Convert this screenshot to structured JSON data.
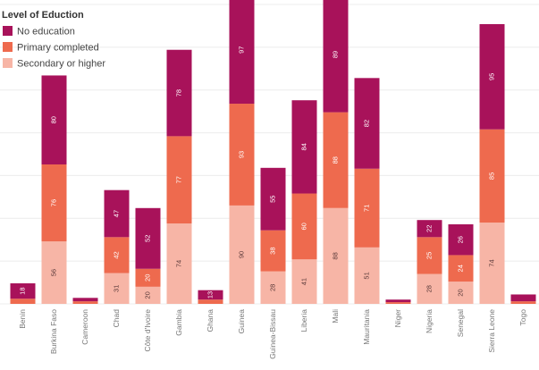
{
  "chart_data": {
    "type": "bar",
    "stacked": true,
    "legend_title": "Level of Eduction",
    "legend_position": "top-left",
    "grid": true,
    "ylim": [
      0,
      350
    ],
    "categories": [
      "Benin",
      "Burkina Faso",
      "Cameroon",
      "Chad",
      "Côte d'Ivoire",
      "Gambia",
      "Ghana",
      "Guinea",
      "Guinea-Bissau",
      "Liberia",
      "Mali",
      "Mauritania",
      "Niger",
      "Nigeria",
      "Senegal",
      "Sierra Leone",
      "Togo"
    ],
    "series": [
      {
        "name": "Secondary or higher",
        "color": "#f7b5a6",
        "values": [
          0,
          73,
          0,
          36,
          20,
          94,
          0,
          115,
          38,
          52,
          112,
          66,
          0,
          35,
          26,
          95,
          0
        ]
      },
      {
        "name": "Primary completed",
        "color": "#ee6a4e",
        "values": [
          6,
          90,
          3,
          42,
          21,
          102,
          5,
          119,
          48,
          77,
          112,
          92,
          2,
          43,
          31,
          109,
          3
        ]
      },
      {
        "name": "No education",
        "color": "#a8125a",
        "values": [
          18,
          104,
          4,
          55,
          71,
          101,
          11,
          126,
          73,
          109,
          135,
          106,
          3,
          20,
          36,
          123,
          8
        ]
      }
    ],
    "data_labels": [
      [
        "",
        "",
        "18"
      ],
      [
        "56",
        "76",
        "80"
      ],
      [
        "",
        "",
        ""
      ],
      [
        "31",
        "42",
        "47"
      ],
      [
        "20",
        "20",
        "52"
      ],
      [
        "74",
        "77",
        "78"
      ],
      [
        "",
        "",
        "13"
      ],
      [
        "90",
        "93",
        "97"
      ],
      [
        "28",
        "38",
        "55"
      ],
      [
        "41",
        "60",
        "84"
      ],
      [
        "88",
        "88",
        "89"
      ],
      [
        "51",
        "71",
        "82"
      ],
      [
        "",
        "",
        ""
      ],
      [
        "28",
        "25",
        "22"
      ],
      [
        "20",
        "24",
        "26"
      ],
      [
        "74",
        "85",
        "95"
      ],
      [
        "",
        "",
        ""
      ]
    ]
  }
}
